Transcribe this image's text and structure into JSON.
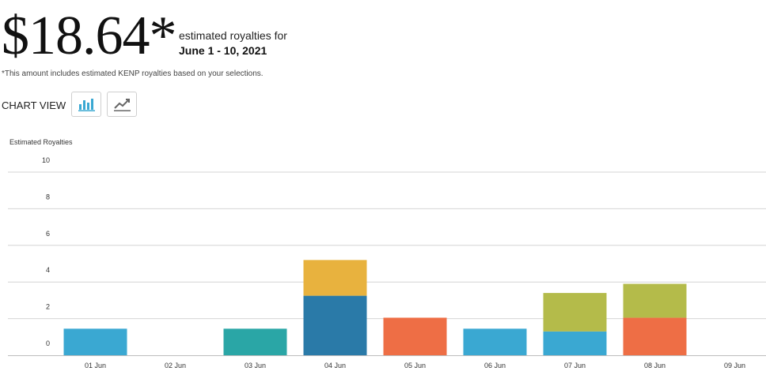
{
  "header": {
    "amount": "$18.64*",
    "estimated_label": "estimated royalties for",
    "date_range": "June 1 - 10, 2021",
    "note": "*This amount includes estimated KENP royalties based on your selections."
  },
  "chart_view": {
    "label": "CHART VIEW",
    "bar_icon": "bar-chart-icon",
    "line_icon": "line-chart-icon",
    "active": "bar"
  },
  "colors": {
    "sky_blue": "#3aa8d2",
    "teal": "#2aa6a6",
    "dark_blue": "#2a7aa8",
    "gold": "#e8b23e",
    "orange": "#ee6e45",
    "olive": "#b4bb4a",
    "grid": "#d4d4d4"
  },
  "chart_data": {
    "type": "bar",
    "stacked": true,
    "ylabel": "Estimated Royalties",
    "ylim": [
      0,
      10
    ],
    "yticks": [
      0,
      2,
      4,
      6,
      8,
      10
    ],
    "grid": true,
    "categories": [
      "01 Jun",
      "02 Jun",
      "03 Jun",
      "04 Jun",
      "05 Jun",
      "06 Jun",
      "07 Jun",
      "08 Jun",
      "09 Jun"
    ],
    "bars": [
      [
        {
          "value": 1.45,
          "color": "#3aa8d2"
        }
      ],
      [],
      [
        {
          "value": 1.45,
          "color": "#2aa6a6"
        }
      ],
      [
        {
          "value": 3.25,
          "color": "#2a7aa8"
        },
        {
          "value": 1.95,
          "color": "#e8b23e"
        }
      ],
      [
        {
          "value": 2.05,
          "color": "#ee6e45"
        }
      ],
      [
        {
          "value": 1.45,
          "color": "#3aa8d2"
        }
      ],
      [
        {
          "value": 1.3,
          "color": "#3aa8d2"
        },
        {
          "value": 2.1,
          "color": "#b4bb4a"
        }
      ],
      [
        {
          "value": 2.05,
          "color": "#ee6e45"
        },
        {
          "value": 1.85,
          "color": "#b4bb4a"
        }
      ],
      []
    ]
  }
}
